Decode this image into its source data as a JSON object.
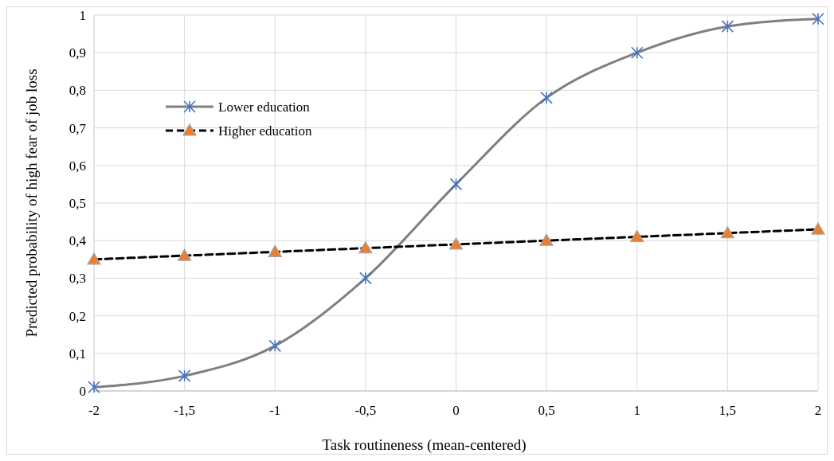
{
  "chart_data": {
    "type": "line",
    "xlabel": "Task routineness (mean-centered)",
    "ylabel": "Predicted probability of high fear of job loss",
    "x": [
      -2,
      -1.5,
      -1,
      -0.5,
      0,
      0.5,
      1,
      1.5,
      2
    ],
    "xlim": [
      -2,
      2
    ],
    "xticks": [
      {
        "value": -2,
        "label": "-2"
      },
      {
        "value": -1.5,
        "label": "-1,5"
      },
      {
        "value": -1,
        "label": "-1"
      },
      {
        "value": -0.5,
        "label": "-0,5"
      },
      {
        "value": 0,
        "label": "0"
      },
      {
        "value": 0.5,
        "label": "0,5"
      },
      {
        "value": 1,
        "label": "1"
      },
      {
        "value": 1.5,
        "label": "1,5"
      },
      {
        "value": 2,
        "label": "2"
      }
    ],
    "ylim": [
      0,
      1
    ],
    "yticks": [
      0,
      {
        "value": 0.1,
        "label": "0,1"
      },
      {
        "value": 0.2,
        "label": "0,2"
      },
      {
        "value": 0.3,
        "label": "0,3"
      },
      {
        "value": 0.4,
        "label": "0,4"
      },
      {
        "value": 0.5,
        "label": "0,5"
      },
      {
        "value": 0.6,
        "label": "0,6"
      },
      {
        "value": 0.7,
        "label": "0,7"
      },
      {
        "value": 0.8,
        "label": "0,8"
      },
      {
        "value": 0.9,
        "label": "0,9"
      },
      1
    ],
    "grid": true,
    "legend": "top left",
    "series": [
      {
        "name": "Lower education",
        "color": "#7f7f7f",
        "colors": [
          "#4472c4",
          "#4472c4",
          "#4472c4",
          "#4472c4",
          "#4472c4",
          "#4472c4",
          "#4472c4",
          "#4472c4",
          "#4472c4"
        ],
        "marker": "cross",
        "line_style": "solid",
        "values": [
          0.01,
          0.04,
          0.12,
          0.3,
          0.55,
          0.78,
          0.9,
          0.97,
          0.99
        ]
      },
      {
        "name": "Higher education",
        "color": "#000000",
        "colors": [
          "#ed7d31",
          "#ed7d31",
          "#ed7d31",
          "#ed7d31",
          "#ed7d31",
          "#ed7d31",
          "#ed7d31",
          "#ed7d31",
          "#ed7d31"
        ],
        "marker": "triangle",
        "line_style": "dashed",
        "values": [
          0.35,
          0.36,
          0.37,
          0.38,
          0.39,
          0.4,
          0.41,
          0.42,
          0.43
        ]
      }
    ]
  }
}
